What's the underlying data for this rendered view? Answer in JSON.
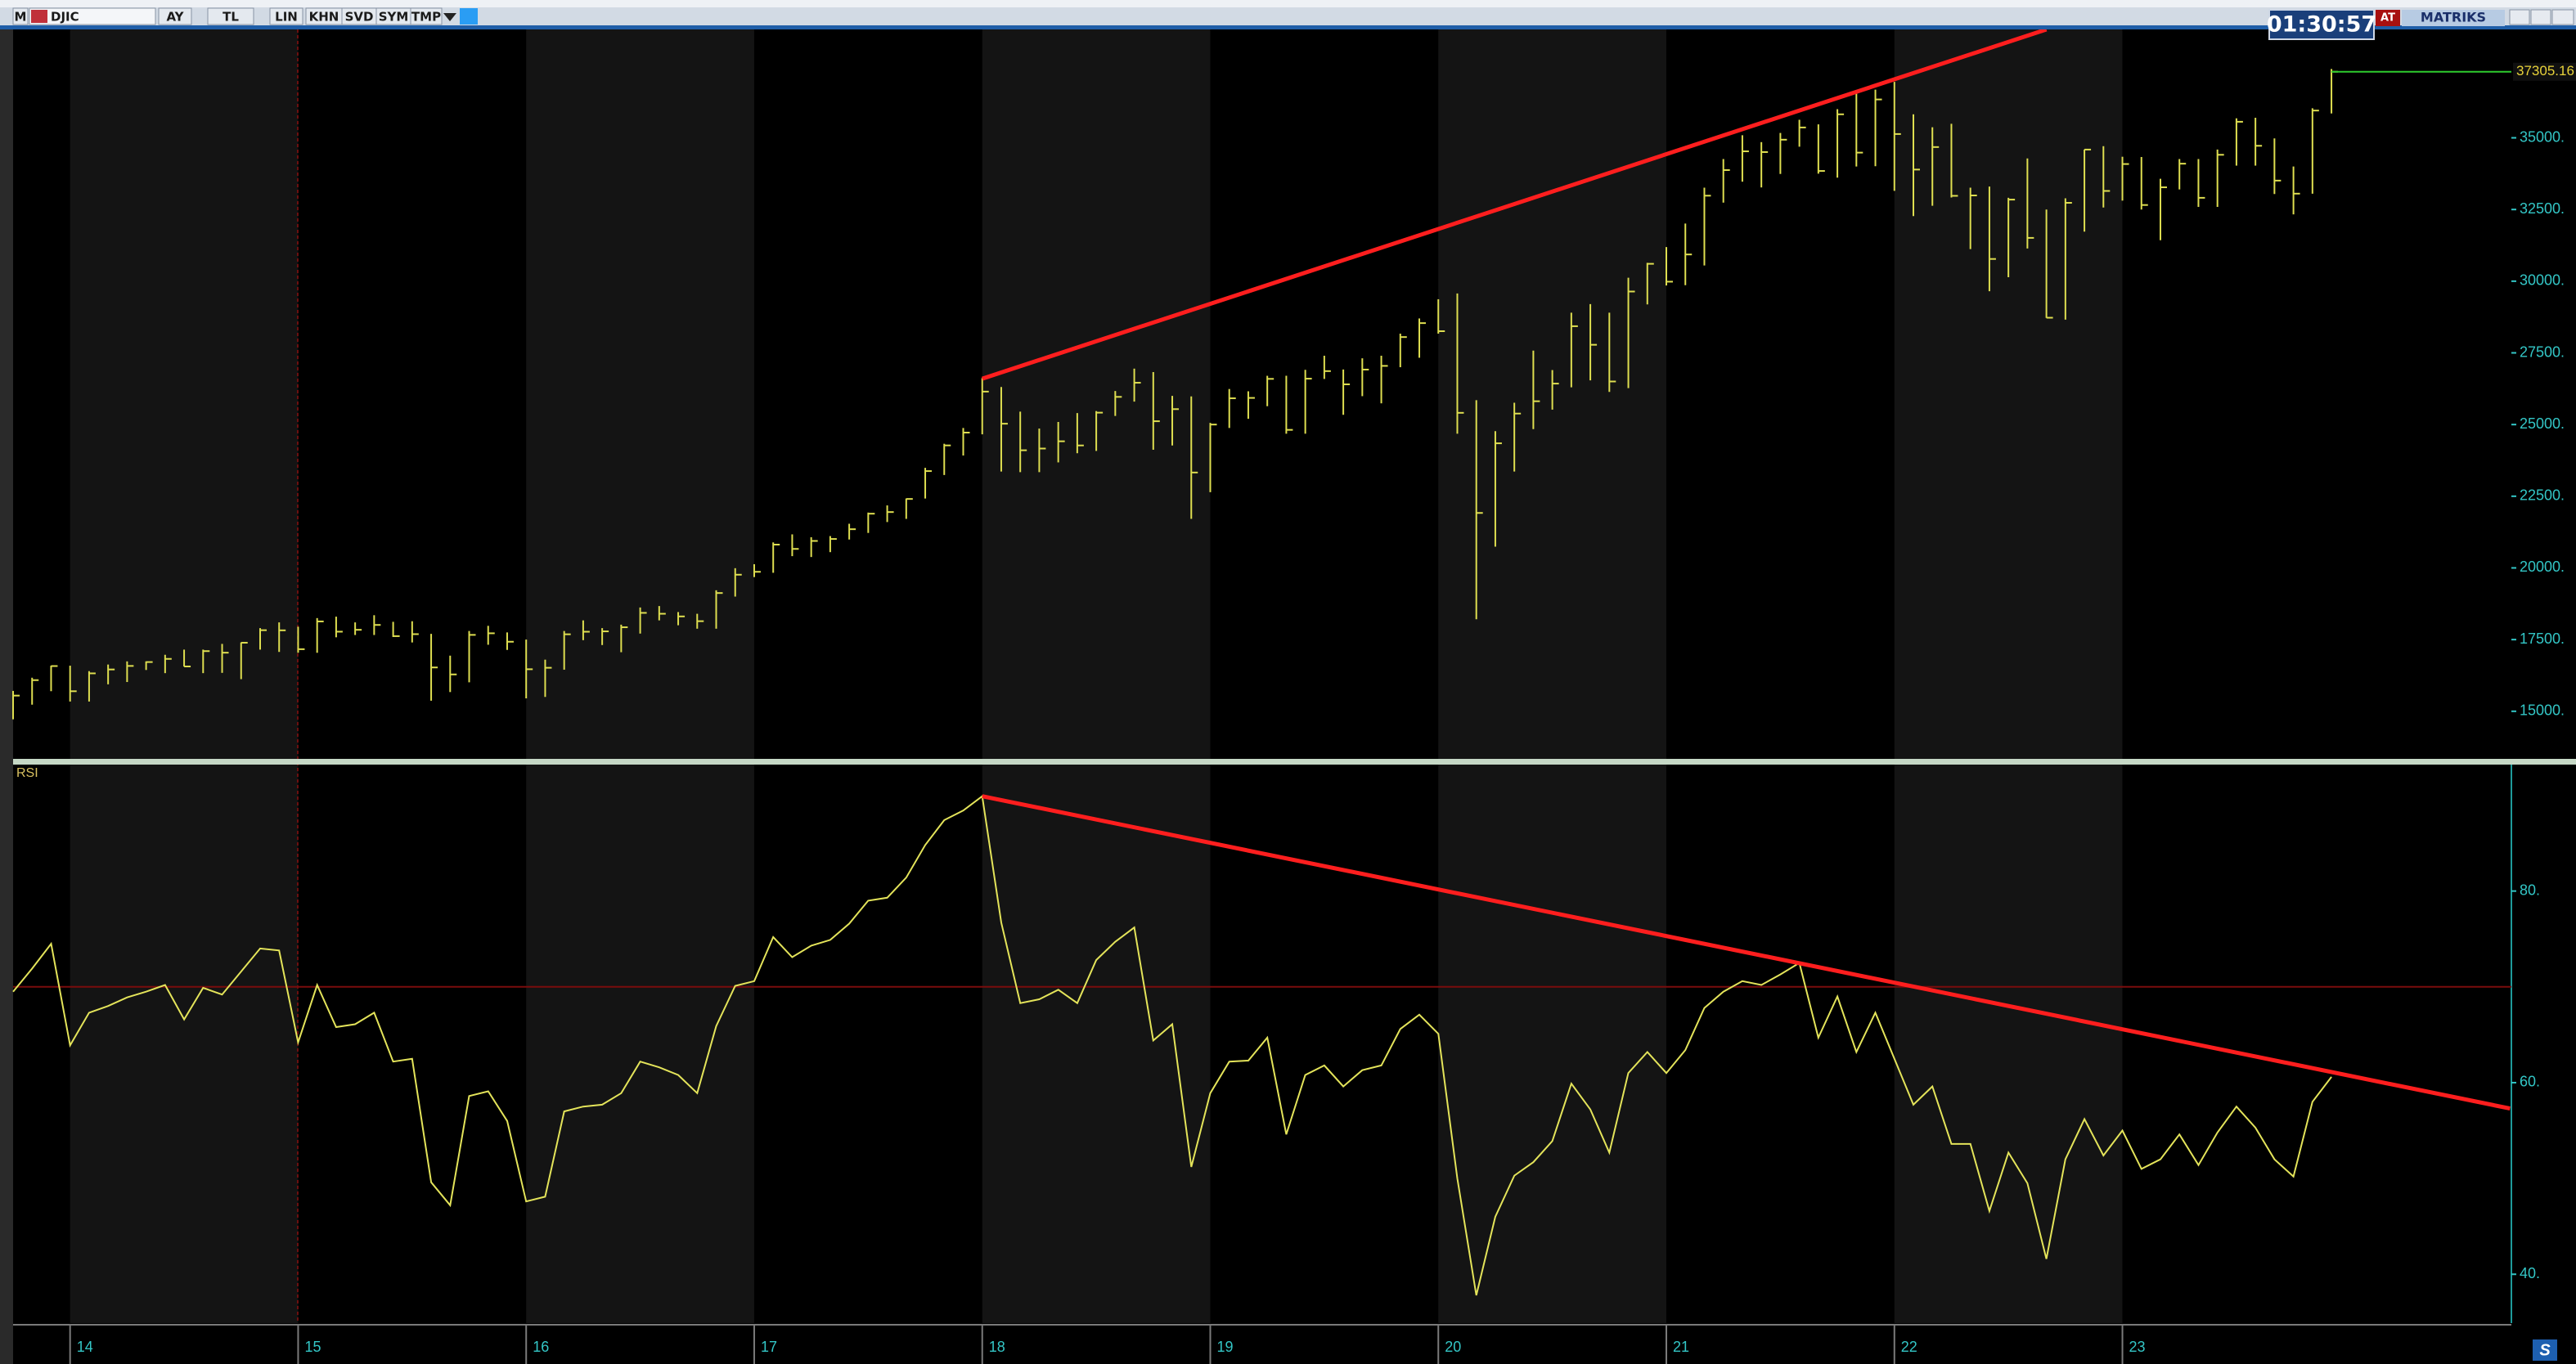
{
  "toolbar": {
    "buttons": [
      "M",
      "DJIC",
      "AY",
      "TL",
      "LIN",
      "KHN",
      "SVD",
      "SYM",
      "TMP"
    ],
    "clock": "01:30:57",
    "badge": "AT",
    "brand": "MATRIKS"
  },
  "chart_data": {
    "type": "ohlc",
    "categories": [
      null,
      null,
      null,
      "14",
      null,
      null,
      null,
      null,
      null,
      null,
      null,
      null,
      null,
      null,
      null,
      "15",
      null,
      null,
      null,
      null,
      null,
      null,
      null,
      null,
      null,
      null,
      null,
      "16",
      null,
      null,
      null,
      null,
      null,
      null,
      null,
      null,
      null,
      null,
      null,
      "17",
      null,
      null,
      null,
      null,
      null,
      null,
      null,
      null,
      null,
      null,
      null,
      "18",
      null,
      null,
      null,
      null,
      null,
      null,
      null,
      null,
      null,
      null,
      null,
      "19",
      null,
      null,
      null,
      null,
      null,
      null,
      null,
      null,
      null,
      null,
      null,
      "20",
      null,
      null,
      null,
      null,
      null,
      null,
      null,
      null,
      null,
      null,
      null,
      "21",
      null,
      null,
      null,
      null,
      null,
      null,
      null,
      null,
      null,
      null,
      null,
      "22",
      null,
      null,
      null,
      null,
      null,
      null,
      null,
      null,
      null,
      null,
      null,
      "23",
      null,
      null,
      null,
      null,
      null,
      null,
      null,
      null,
      null,
      null,
      null
    ],
    "high": [
      15710,
      16170,
      16590,
      16590,
      16400,
      16630,
      16740,
      16740,
      16970,
      17150,
      17150,
      17350,
      17400,
      17900,
      18100,
      17950,
      18250,
      18300,
      18100,
      18350,
      18120,
      18140,
      17700,
      16940,
      17800,
      17980,
      17750,
      17500,
      16800,
      17800,
      18170,
      17900,
      18020,
      18620,
      18670,
      18460,
      18400,
      19220,
      19990,
      20130,
      20890,
      21170,
      21070,
      21110,
      21540,
      21930,
      22180,
      22420,
      23490,
      24330,
      24880,
      26620,
      26310,
      25450,
      24860,
      25090,
      25400,
      25470,
      26170,
      26950,
      26830,
      26000,
      25980,
      25060,
      26240,
      26160,
      26700,
      26700,
      26910,
      27400,
      26920,
      27310,
      27400,
      28170,
      28700,
      29370,
      29570,
      25850,
      24770,
      25760,
      27580,
      26900,
      28900,
      29200,
      28900,
      30120,
      30640,
      31190,
      32010,
      33260,
      34260,
      35090,
      34850,
      35170,
      35630,
      35470,
      36000,
      36570,
      36680,
      36950,
      35820,
      35370,
      35490,
      33260,
      33300,
      32910,
      34280,
      32500,
      32890,
      34590,
      34710,
      34340,
      34330,
      33570,
      34260,
      34260,
      34590,
      35680,
      35700,
      34980,
      34000,
      36030,
      37400
    ],
    "low": [
      14720,
      15230,
      15700,
      15340,
      15340,
      15940,
      16020,
      16440,
      16330,
      16560,
      16330,
      16340,
      16120,
      17150,
      17070,
      17040,
      17040,
      17580,
      17660,
      17660,
      17590,
      17400,
      15370,
      15670,
      16010,
      17320,
      17140,
      15450,
      15500,
      16450,
      17480,
      17310,
      17060,
      17710,
      18170,
      18000,
      17880,
      17880,
      19000,
      19680,
      19830,
      20410,
      20380,
      20550,
      20990,
      21220,
      21600,
      21710,
      22420,
      23240,
      23920,
      24660,
      23360,
      23340,
      23340,
      23680,
      24000,
      24080,
      25300,
      25800,
      24120,
      24270,
      21710,
      22640,
      24880,
      25200,
      25640,
      24680,
      24680,
      26590,
      25340,
      25990,
      25740,
      27000,
      27330,
      28170,
      24680,
      18210,
      20740,
      23360,
      24840,
      25520,
      26300,
      26540,
      26140,
      26270,
      29190,
      29850,
      29860,
      30550,
      32740,
      33470,
      33270,
      33740,
      34690,
      33750,
      33610,
      34000,
      34010,
      33150,
      32270,
      32630,
      32920,
      31120,
      29650,
      30140,
      31140,
      28720,
      28660,
      31730,
      32570,
      32810,
      32500,
      31430,
      33200,
      32590,
      32590,
      34030,
      34030,
      33040,
      32330,
      33050,
      35850
    ],
    "close": [
      15546,
      16086,
      16577,
      15699,
      16322,
      16458,
      16581,
      16717,
      16827,
      16563,
      17098,
      17043,
      17391,
      17828,
      17823,
      17165,
      18133,
      17776,
      17841,
      18011,
      17620,
      17690,
      16528,
      16285,
      17664,
      17720,
      17425,
      16466,
      16517,
      17685,
      17774,
      17787,
      17930,
      18432,
      18401,
      18308,
      18142,
      19124,
      19763,
      19864,
      20812,
      20663,
      20941,
      21009,
      21350,
      21891,
      21948,
      22405,
      23377,
      24272,
      24719,
      26149,
      25029,
      24103,
      24163,
      24416,
      24271,
      25415,
      25965,
      26458,
      25116,
      25538,
      23327,
      25000,
      25916,
      25929,
      26593,
      24815,
      26600,
      26864,
      26403,
      26917,
      27046,
      28051,
      28538,
      28256,
      25409,
      21917,
      24346,
      25383,
      25813,
      26428,
      28430,
      27782,
      26502,
      29639,
      30606,
      29983,
      30932,
      32982,
      33875,
      34529,
      34503,
      34935,
      35361,
      33844,
      35820,
      34484,
      36338,
      35132,
      33893,
      34678,
      32977,
      32990,
      30775,
      32845,
      31510,
      28726,
      32733,
      34590,
      33147,
      34086,
      32657,
      33274,
      34098,
      32908,
      34408,
      35560,
      34722,
      33508,
      33053,
      35951,
      37305.16
    ],
    "color": "#dede50",
    "ylim": [
      13340,
      38780
    ],
    "yticks": [
      {
        "value": 15000,
        "label": "15000."
      },
      {
        "value": 17500,
        "label": "17500."
      },
      {
        "value": 20000,
        "label": "20000."
      },
      {
        "value": 22500,
        "label": "22500."
      },
      {
        "value": 25000,
        "label": "25000."
      },
      {
        "value": 27500,
        "label": "27500."
      },
      {
        "value": 30000,
        "label": "30000."
      },
      {
        "value": 32500,
        "label": "32500."
      },
      {
        "value": 35000,
        "label": "35000."
      }
    ],
    "trendline": {
      "x": [
        51,
        107
      ],
      "y": [
        26600,
        38780
      ],
      "color": "#ff1e1e"
    },
    "rsi": {
      "type": "line",
      "label": "RSI",
      "color": "#e4e45a",
      "values": [
        69.5,
        71.9,
        74.5,
        63.9,
        67.3,
        68.0,
        68.9,
        69.5,
        70.2,
        66.6,
        69.9,
        69.2,
        71.6,
        74.0,
        73.8,
        64.2,
        70.2,
        65.8,
        66.1,
        67.3,
        62.2,
        62.5,
        49.6,
        47.2,
        58.6,
        59.1,
        56.0,
        47.6,
        48.1,
        57.0,
        57.5,
        57.7,
        58.9,
        62.2,
        61.6,
        60.8,
        58.9,
        65.9,
        70.1,
        70.6,
        75.2,
        73.1,
        74.3,
        74.9,
        76.6,
        79.0,
        79.3,
        81.4,
        84.8,
        87.4,
        88.4,
        89.9,
        76.7,
        68.3,
        68.7,
        69.7,
        68.3,
        72.8,
        74.7,
        76.2,
        64.4,
        66.1,
        51.2,
        58.9,
        62.2,
        62.3,
        64.7,
        54.6,
        60.8,
        61.8,
        59.6,
        61.3,
        61.8,
        65.6,
        67.1,
        65.1,
        50.0,
        37.8,
        46.0,
        50.3,
        51.7,
        53.9,
        59.9,
        57.2,
        52.7,
        61.0,
        63.2,
        61.0,
        63.4,
        67.8,
        69.5,
        70.6,
        70.2,
        71.3,
        72.5,
        64.7,
        69.0,
        63.2,
        67.3,
        62.5,
        57.7,
        59.6,
        53.6,
        53.6,
        46.6,
        52.7,
        49.5,
        41.6,
        52.0,
        56.2,
        52.4,
        55.0,
        51.0,
        52.0,
        54.6,
        51.4,
        54.8,
        57.5,
        55.3,
        52.0,
        50.2,
        58.0,
        60.6
      ],
      "ylim": [
        34.9,
        93.2
      ],
      "yticks": [
        {
          "value": 40,
          "label": "40."
        },
        {
          "value": 60,
          "label": "60."
        },
        {
          "value": 80,
          "label": "80."
        }
      ],
      "level": 70,
      "trendline": {
        "x": [
          51,
          131.4
        ],
        "y": [
          89.9,
          57.3
        ],
        "color": "#ff1e1e"
      }
    }
  }
}
